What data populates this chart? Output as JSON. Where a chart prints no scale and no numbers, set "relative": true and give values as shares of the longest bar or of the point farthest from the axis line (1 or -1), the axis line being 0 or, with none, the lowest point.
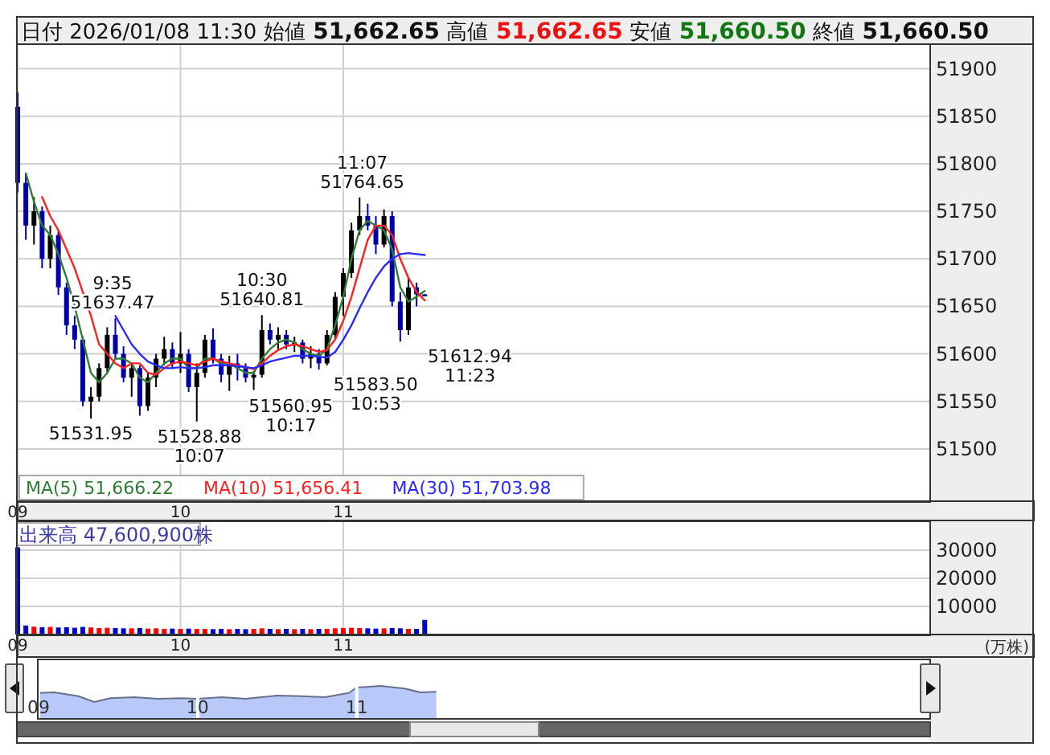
{
  "chart_data": [
    {
      "type": "candlestick",
      "title": "日付 2026/01/08 11:30 始値 51,662.65 高値 51,662.65 安値 51,660.50 終値 51,660.50",
      "x": [
        9,
        9.05,
        9.1,
        9.15,
        9.2,
        9.25,
        9.3,
        9.35,
        9.4,
        9.45,
        9.5,
        9.55,
        9.6,
        9.65,
        9.7,
        9.75,
        9.8,
        9.85,
        9.9,
        9.95,
        10,
        10.05,
        10.1,
        10.15,
        10.2,
        10.25,
        10.3,
        10.35,
        10.4,
        10.45,
        10.5,
        10.55,
        10.6,
        10.65,
        10.7,
        10.75,
        10.8,
        10.85,
        10.9,
        10.95,
        11,
        11.05,
        11.1,
        11.15,
        11.2,
        11.25,
        11.3,
        11.35,
        11.4,
        11.45,
        11.5
      ],
      "ohlc": [
        [
          51860,
          51875,
          51770,
          51780
        ],
        [
          51780,
          51790,
          51720,
          51735
        ],
        [
          51735,
          51765,
          51715,
          51750
        ],
        [
          51750,
          51755,
          51690,
          51700
        ],
        [
          51700,
          51735,
          51690,
          51725
        ],
        [
          51725,
          51730,
          51662,
          51670
        ],
        [
          51670,
          51675,
          51620,
          51630
        ],
        [
          51630,
          51640,
          51605,
          51615
        ],
        [
          51615,
          51618,
          51545,
          51550
        ],
        [
          51550,
          51565,
          51531.95,
          51555
        ],
        [
          51555,
          51590,
          51550,
          51585
        ],
        [
          51585,
          51628,
          51580,
          51620
        ],
        [
          51620,
          51637.47,
          51595,
          51600
        ],
        [
          51600,
          51608,
          51570,
          51575
        ],
        [
          51575,
          51590,
          51555,
          51585
        ],
        [
          51585,
          51588,
          51535,
          51545
        ],
        [
          51545,
          51580,
          51540,
          51575
        ],
        [
          51575,
          51600,
          51565,
          51595
        ],
        [
          51595,
          51618,
          51588,
          51605
        ],
        [
          51605,
          51612,
          51585,
          51590
        ],
        [
          51590,
          51623,
          51580,
          51600
        ],
        [
          51600,
          51605,
          51560,
          51565
        ],
        [
          51565,
          51590,
          51528.88,
          51580
        ],
        [
          51580,
          51620,
          51575,
          51615
        ],
        [
          51615,
          51627,
          51590,
          51595
        ],
        [
          51595,
          51600,
          51570,
          51578
        ],
        [
          51578,
          51598,
          51560.95,
          51590
        ],
        [
          51590,
          51600,
          51572,
          51585
        ],
        [
          51585,
          51590,
          51570,
          51575
        ],
        [
          51575,
          51582,
          51562,
          51578
        ],
        [
          51578,
          51640.81,
          51575,
          51625
        ],
        [
          51625,
          51632,
          51610,
          51615
        ],
        [
          51615,
          51628,
          51605,
          51620
        ],
        [
          51620,
          51625,
          51605,
          51610
        ],
        [
          51610,
          51618,
          51602,
          51612
        ],
        [
          51612,
          51615,
          51590,
          51595
        ],
        [
          51595,
          51608,
          51585,
          51600
        ],
        [
          51600,
          51605,
          51583.5,
          51590
        ],
        [
          51590,
          51625,
          51588,
          51620
        ],
        [
          51620,
          51665,
          51615,
          51660
        ],
        [
          51660,
          51690,
          51640,
          51685
        ],
        [
          51685,
          51738,
          51680,
          51730
        ],
        [
          51730,
          51764.65,
          51725,
          51745
        ],
        [
          51745,
          51758,
          51730,
          51735
        ],
        [
          51735,
          51745,
          51705,
          51715
        ],
        [
          51715,
          51752,
          51712,
          51745
        ],
        [
          51745,
          51750,
          51650,
          51655
        ],
        [
          51655,
          51665,
          51612.94,
          51625
        ],
        [
          51625,
          51680,
          51620,
          51670
        ],
        [
          51670,
          51675,
          51650,
          51662.65
        ],
        [
          51662.65,
          51662.65,
          51660.5,
          51660.5
        ]
      ],
      "colors": [
        "#0000aa",
        "#0000aa",
        "#000000",
        "#0000aa",
        "#000000",
        "#0000aa",
        "#0000aa",
        "#0000aa",
        "#0000aa",
        "#000000",
        "#000000",
        "#000000",
        "#0000aa",
        "#0000aa",
        "#000000",
        "#0000aa",
        "#000000",
        "#000000",
        "#000000",
        "#0000aa",
        "#000000",
        "#0000aa",
        "#000000",
        "#000000",
        "#0000aa",
        "#0000aa",
        "#000000",
        "#0000aa",
        "#0000aa",
        "#000000",
        "#000000",
        "#0000aa",
        "#000000",
        "#0000aa",
        "#000000",
        "#0000aa",
        "#000000",
        "#0000aa",
        "#000000",
        "#000000",
        "#000000",
        "#000000",
        "#000000",
        "#0000aa",
        "#0000aa",
        "#000000",
        "#0000aa",
        "#0000aa",
        "#000000",
        "#0000aa",
        "#0000aa"
      ],
      "series": [
        {
          "type": "line",
          "name": "MA(5) 51,666.22",
          "color": "#2e7d32",
          "values": [
            null,
            51790,
            51760,
            51735,
            51725,
            51705,
            51680,
            51650,
            51615,
            51580,
            51570,
            51580,
            51595,
            51595,
            51590,
            51575,
            51570,
            51580,
            51590,
            51595,
            51595,
            51585,
            51585,
            51595,
            51595,
            51590,
            51590,
            51585,
            51580,
            51580,
            51595,
            51605,
            51612,
            51615,
            51612,
            51605,
            51600,
            51598,
            51605,
            51630,
            51660,
            51700,
            51730,
            51740,
            51735,
            51730,
            51710,
            51670,
            51655,
            51660,
            51666.22
          ]
        },
        {
          "type": "line",
          "name": "MA(10) 51,656.41",
          "color": "#ff2020",
          "values": [
            null,
            null,
            null,
            51765,
            51745,
            51730,
            51710,
            51690,
            51665,
            51640,
            51610,
            51600,
            51590,
            51585,
            51590,
            51590,
            51580,
            51578,
            51585,
            51590,
            51592,
            51590,
            51588,
            51592,
            51595,
            51592,
            51590,
            51588,
            51586,
            51584,
            51590,
            51598,
            51604,
            51608,
            51610,
            51608,
            51605,
            51602,
            51604,
            51615,
            51635,
            51660,
            51690,
            51720,
            51735,
            51735,
            51725,
            51700,
            51680,
            51665,
            51656.41
          ]
        },
        {
          "type": "line",
          "name": "MA(30) 51,703.98",
          "color": "#2a2aff",
          "values": [
            null,
            null,
            null,
            null,
            null,
            null,
            null,
            null,
            null,
            null,
            null,
            null,
            51640,
            51625,
            51610,
            51600,
            51592,
            51588,
            51585,
            51585,
            51586,
            51585,
            51585,
            51586,
            51588,
            51588,
            51588,
            51587,
            51586,
            51585,
            51588,
            51592,
            51594,
            51596,
            51598,
            51598,
            51598,
            51597,
            51596,
            51602,
            51615,
            51630,
            51648,
            51665,
            51680,
            51692,
            51700,
            51705,
            51706,
            51705,
            51703.98
          ]
        }
      ],
      "xlim": [
        9,
        14.6
      ],
      "xticks": [
        {
          "value": 9,
          "label": "09"
        },
        {
          "value": 10,
          "label": "10"
        },
        {
          "value": 11,
          "label": "11"
        }
      ],
      "ylim": [
        51445,
        51925
      ],
      "yticks": [
        51500,
        51550,
        51600,
        51650,
        51700,
        51750,
        51800,
        51850,
        51900
      ],
      "grid": true,
      "legend": "bottom left",
      "annotations": [
        {
          "text": "51531.95",
          "x": 9.45,
          "y": 51531.95
        },
        {
          "text": "9:35\n51637.47",
          "x": 9.5833,
          "y": 51637.47
        },
        {
          "text": "51528.88\n10:07",
          "x": 10.1167,
          "y": 51528.88
        },
        {
          "text": "51560.95\n10:17",
          "x": 10.2833,
          "y": 51560.95
        },
        {
          "text": "10:30\n51640.81",
          "x": 10.5,
          "y": 51640.81
        },
        {
          "text": "51583.50\n10:53",
          "x": 10.8833,
          "y": 51583.5
        },
        {
          "text": "11:07\n51764.65",
          "x": 11.1167,
          "y": 51764.65
        },
        {
          "text": "51612.94\n11:23",
          "x": 11.3833,
          "y": 51612.94
        }
      ]
    },
    {
      "type": "bar",
      "title": "出来高 47,600,900株",
      "ylabel": "(万株)",
      "x": [
        9,
        9.05,
        9.1,
        9.15,
        9.2,
        9.25,
        9.3,
        9.35,
        9.4,
        9.45,
        9.5,
        9.55,
        9.6,
        9.65,
        9.7,
        9.75,
        9.8,
        9.85,
        9.9,
        9.95,
        10,
        10.05,
        10.1,
        10.15,
        10.2,
        10.25,
        10.3,
        10.35,
        10.4,
        10.45,
        10.5,
        10.55,
        10.6,
        10.65,
        10.7,
        10.75,
        10.8,
        10.85,
        10.9,
        10.95,
        11,
        11.05,
        11.1,
        11.15,
        11.2,
        11.25,
        11.3,
        11.35,
        11.4,
        11.45,
        11.5
      ],
      "values": [
        31000,
        3200,
        2800,
        2600,
        2700,
        2500,
        2600,
        2400,
        2700,
        2500,
        2300,
        2400,
        2300,
        2200,
        2200,
        2300,
        2100,
        2200,
        2000,
        2100,
        2000,
        2100,
        2000,
        2000,
        1900,
        2000,
        1900,
        2000,
        1900,
        2000,
        2200,
        2000,
        1900,
        2000,
        1900,
        2000,
        1900,
        2000,
        2000,
        2200,
        2300,
        2400,
        2300,
        2200,
        2100,
        2200,
        2300,
        2200,
        2000,
        2000,
        5200
      ],
      "colors": [
        "#0000cc",
        "#0000cc",
        "#ff0000",
        "#0000cc",
        "#ff0000",
        "#0000cc",
        "#0000cc",
        "#0000cc",
        "#0000cc",
        "#ff0000",
        "#ff0000",
        "#ff0000",
        "#0000cc",
        "#0000cc",
        "#ff0000",
        "#0000cc",
        "#ff0000",
        "#ff0000",
        "#ff0000",
        "#0000cc",
        "#ff0000",
        "#0000cc",
        "#ff0000",
        "#ff0000",
        "#0000cc",
        "#0000cc",
        "#ff0000",
        "#0000cc",
        "#0000cc",
        "#ff0000",
        "#ff0000",
        "#0000cc",
        "#ff0000",
        "#0000cc",
        "#ff0000",
        "#0000cc",
        "#ff0000",
        "#0000cc",
        "#ff0000",
        "#ff0000",
        "#ff0000",
        "#ff0000",
        "#ff0000",
        "#0000cc",
        "#0000cc",
        "#ff0000",
        "#0000cc",
        "#0000cc",
        "#ff0000",
        "#0000cc",
        "#0000cc"
      ],
      "xlim": [
        9,
        14.6
      ],
      "xticks": [
        {
          "value": 9,
          "label": "09"
        },
        {
          "value": 10,
          "label": "10"
        },
        {
          "value": 11,
          "label": "11"
        }
      ],
      "ylim": [
        0,
        40000
      ],
      "yticks": [
        10000,
        20000,
        30000
      ],
      "grid": true
    },
    {
      "type": "area",
      "relative": true,
      "color": "#b8c8f8",
      "x": [
        9,
        9.1,
        9.25,
        9.35,
        9.45,
        9.6,
        9.75,
        9.9,
        10,
        10.15,
        10.3,
        10.5,
        10.65,
        10.8,
        10.95,
        11,
        11.15,
        11.3,
        11.4,
        11.5
      ],
      "values": [
        0.78,
        0.8,
        0.68,
        0.5,
        0.62,
        0.65,
        0.6,
        0.62,
        0.6,
        0.65,
        0.6,
        0.7,
        0.68,
        0.65,
        0.78,
        0.95,
        1,
        0.92,
        0.8,
        0.82
      ],
      "xlim": [
        9,
        14.6
      ],
      "xticks": [
        {
          "value": 9,
          "label": "09"
        },
        {
          "value": 10,
          "label": "10"
        },
        {
          "value": 11,
          "label": "11"
        }
      ]
    }
  ]
}
